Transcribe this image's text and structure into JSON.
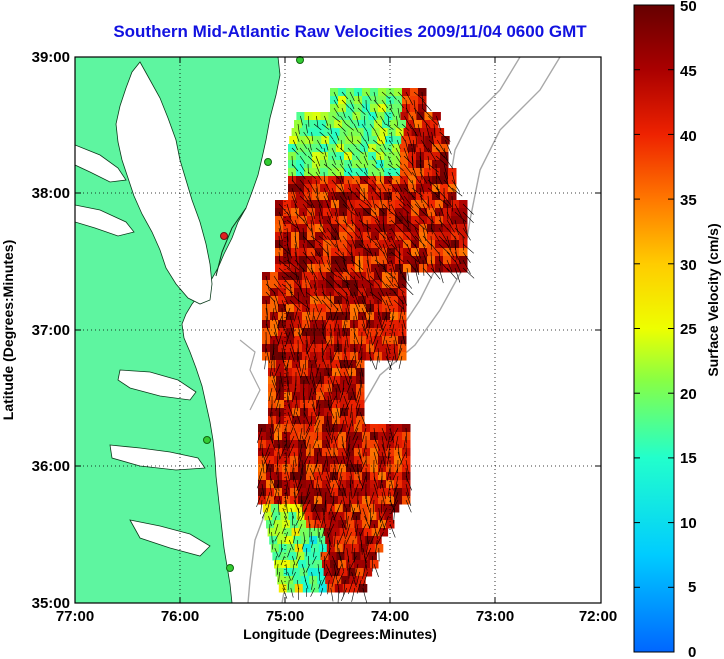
{
  "title": "Southern Mid-Atlantic Raw Velocities 2009/11/04 0600 GMT",
  "x_axis": {
    "label": "Longitude (Degrees:Minutes)",
    "ticks": [
      "77:00",
      "76:00",
      "75:00",
      "74:00",
      "73:00",
      "72:00"
    ]
  },
  "y_axis": {
    "label": "Latitude (Degrees:Minutes)",
    "ticks": [
      "39:00",
      "38:00",
      "37:00",
      "36:00",
      "35:00"
    ]
  },
  "colorbar": {
    "label": "Surface Velocity (cm/s)",
    "ticks": [
      "50",
      "45",
      "40",
      "35",
      "30",
      "25",
      "20",
      "15",
      "10",
      "5",
      "0"
    ],
    "min": 0,
    "max": 50
  },
  "colors": {
    "land": "#5ef5a0",
    "title": "#1212e0",
    "station": "#33cc33",
    "station_active": "#e02020"
  }
}
